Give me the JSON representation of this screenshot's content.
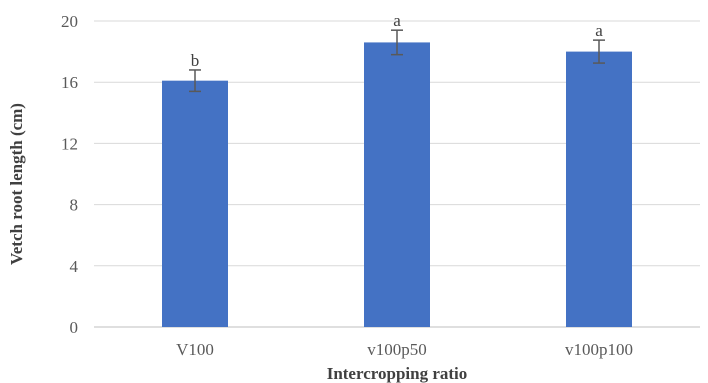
{
  "chart_data": {
    "type": "bar",
    "title": "",
    "xlabel": "Intercropping ratio",
    "ylabel": "Vetch root length (cm)",
    "categories": [
      "V100",
      "v100p50",
      "v100p100"
    ],
    "values": [
      16.1,
      18.6,
      18.0
    ],
    "error_bars": [
      0.7,
      0.8,
      0.75
    ],
    "significance_letters": [
      "b",
      "a",
      "a"
    ],
    "ylim": [
      0,
      20
    ],
    "yticks": [
      0,
      4,
      8,
      12,
      16,
      20
    ],
    "ytick_labels": [
      "0",
      "4",
      "8",
      "12",
      "16",
      "20"
    ],
    "grid": true,
    "legend": "none",
    "bar_color": "#4472c4",
    "error_bar_color": "#595959",
    "grid_color": "#d9d9d9"
  }
}
